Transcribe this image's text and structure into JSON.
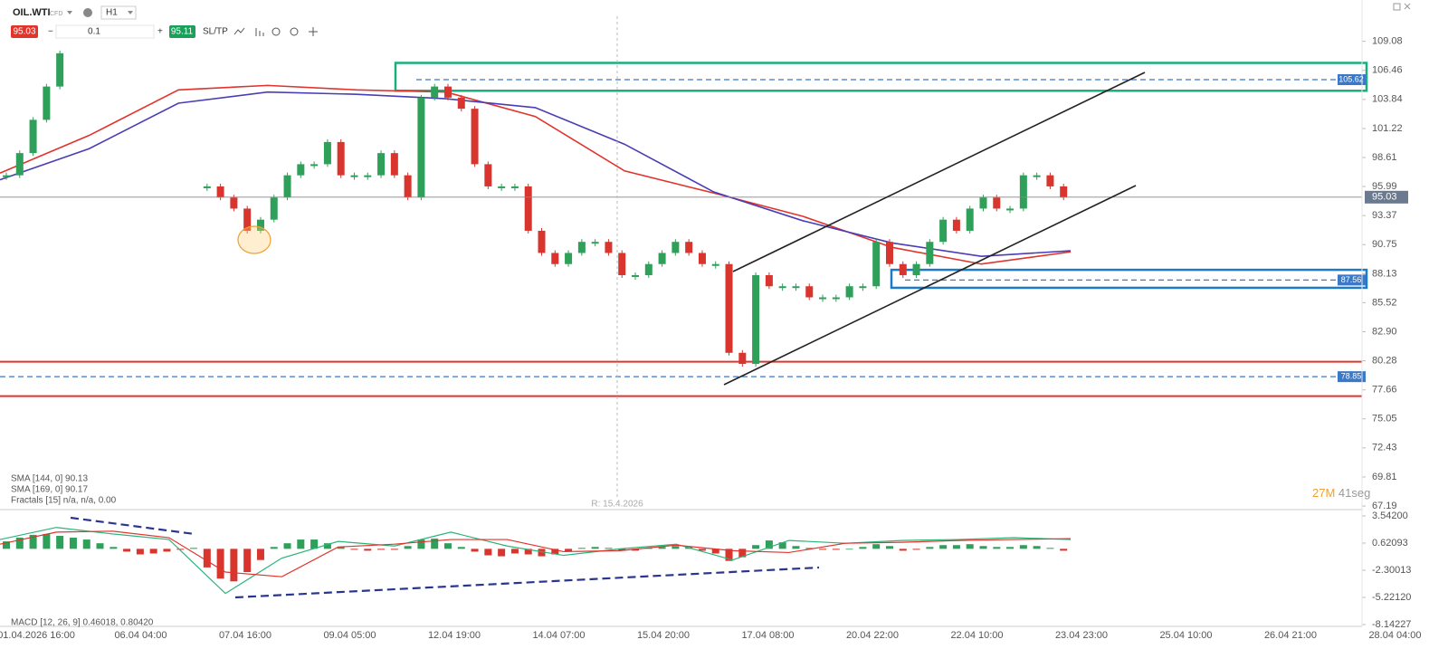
{
  "toolbar": {
    "symbol": "OIL.WTI",
    "instrument": "CFD",
    "timeframe": "H1",
    "sell": 95.03,
    "volume": 0.1,
    "buy": 95.11,
    "sltp": "SL/TP"
  },
  "indicators": [
    "SMA [144, 0] 90.13",
    "SMA [169, 0] 90.17",
    "Fractals [15] n/a, n/a, 0.00"
  ],
  "macd_legend": "MACD [12, 26, 9] 0.46018, 0.80420",
  "cursor_label": "R: 15.4.2026",
  "timer": {
    "minutes": "27M",
    "seconds": "41seg"
  },
  "chart_data": [
    {
      "type": "candlestick",
      "ylim": [
        66.95,
        112.8
      ],
      "yticks": [
        109.08,
        106.46,
        103.84,
        101.22,
        98.61,
        95.99,
        93.37,
        90.75,
        88.13,
        85.52,
        {
          "value": 82.9,
          "label": "82.90"
        },
        80.28,
        77.66,
        75.05,
        72.43,
        69.81,
        67.19
      ],
      "xticks": [
        "01.04.2026 16:00",
        "06.04 04:00",
        "07.04 16:00",
        "09.04 05:00",
        "12.04 19:00",
        "14.04 07:00",
        "15.04 20:00",
        "17.04 08:00",
        "20.04 22:00",
        "22.04 10:00",
        "23.04 23:00",
        "25.04 10:00",
        "26.04 21:00",
        "28.04 04:00"
      ],
      "series": [
        {
          "name": "OIL.WTI",
          "up_color": "#2ea05a",
          "down_color": "#d8352f",
          "values": [
            97,
            99,
            102,
            105,
            108,
            null,
            null,
            null,
            null,
            null,
            null,
            null,
            null,
            null,
            null,
            96,
            95,
            94,
            92,
            93,
            95,
            97,
            98,
            98,
            100,
            97,
            97,
            97,
            99,
            97,
            95,
            104,
            105,
            104,
            103,
            98,
            96,
            96,
            96,
            92,
            90,
            89,
            90,
            91,
            91,
            90,
            88,
            88,
            89,
            90,
            91,
            90,
            89,
            89,
            81,
            80,
            88,
            87,
            87,
            87,
            86,
            86,
            86,
            87,
            87,
            91,
            89,
            88,
            89,
            91,
            93,
            92,
            94,
            95,
            94,
            94,
            97,
            97,
            96,
            95
          ]
        },
        {
          "name": "SMA [144, 0]",
          "color": "#e0342c",
          "values": [
            97.2,
            100.6,
            104.7,
            105.1,
            104.7,
            104.5,
            102.3,
            97.4,
            95.4,
            93.3,
            90.5,
            89.0,
            90.1
          ]
        },
        {
          "name": "SMA [169, 0]",
          "color": "#4a3db5",
          "values": [
            96.6,
            99.4,
            103.5,
            104.5,
            104.3,
            103.9,
            103.1,
            99.8,
            95.5,
            92.9,
            90.9,
            89.7,
            90.2
          ]
        }
      ],
      "zones": [
        {
          "low": 104.62,
          "high": 107.13,
          "color": "#1aaf7a"
        },
        {
          "low": 86.86,
          "high": 88.48,
          "color": "#1e7ac8"
        }
      ],
      "levels": [
        105.62,
        87.56,
        78.85
      ],
      "level_color": "#3b78c7",
      "lines": [
        80.2,
        77.1
      ],
      "line_color": "#e0342c",
      "last": 95.03
    },
    {
      "type": "macd",
      "ylim": [
        -8.63,
        4.22
      ],
      "yticks": [
        {
          "value": 3.542,
          "label": "3.54200"
        },
        0.62093,
        -2.30013,
        {
          "value": -5.2212,
          "label": "-5.22120"
        },
        -8.14227
      ],
      "histogram": {
        "up_color": "#2ea05a",
        "down_color": "#d8352f",
        "values": [
          0.8,
          1.2,
          1.5,
          1.6,
          1.4,
          1.2,
          1.0,
          0.6,
          0.2,
          -0.3,
          -0.6,
          -0.5,
          -0.3,
          -0.1,
          0.1,
          -2,
          -3.2,
          -3.5,
          -2.5,
          -1.2,
          0.2,
          0.6,
          1.0,
          1.0,
          0.6,
          0.2,
          -0.1,
          -0.2,
          -0.1,
          -0.1,
          0.3,
          1.0,
          1.1,
          0.6,
          0.2,
          -0.3,
          -0.7,
          -0.8,
          -0.5,
          -0.6,
          -0.8,
          -0.6,
          -0.3,
          0.1,
          0.2,
          0.1,
          -0.2,
          -0.2,
          0.1,
          0.2,
          0.3,
          0.2,
          -0.2,
          -0.5,
          -1.3,
          -0.9,
          0.4,
          0.9,
          0.7,
          0.3,
          0.1,
          -0.1,
          -0.1,
          0.0,
          0.2,
          0.5,
          0.3,
          -0.2,
          -0.1,
          0.2,
          0.4,
          0.4,
          0.5,
          0.3,
          0.2,
          0.2,
          0.4,
          0.3,
          0.1,
          -0.2
        ]
      },
      "series": [
        {
          "name": "MACD",
          "color": "#2bb37a",
          "values": [
            1.0,
            2.3,
            1.6,
            1.0,
            -4.8,
            -1.0,
            0.8,
            0.3,
            1.8,
            0.3,
            -0.7,
            0.0,
            0.5,
            -1.2,
            0.9,
            0.6,
            0.9,
            1.0,
            1.2,
            1.0
          ]
        },
        {
          "name": "Signal",
          "color": "#e0342c",
          "values": [
            0.5,
            1.8,
            1.9,
            1.2,
            -2.5,
            -3.0,
            0.2,
            0.5,
            1.0,
            1.0,
            -0.3,
            -0.2,
            0.4,
            -0.2,
            -0.4,
            0.6,
            0.7,
            0.9,
            1.0,
            1.1
          ]
        }
      ]
    }
  ]
}
